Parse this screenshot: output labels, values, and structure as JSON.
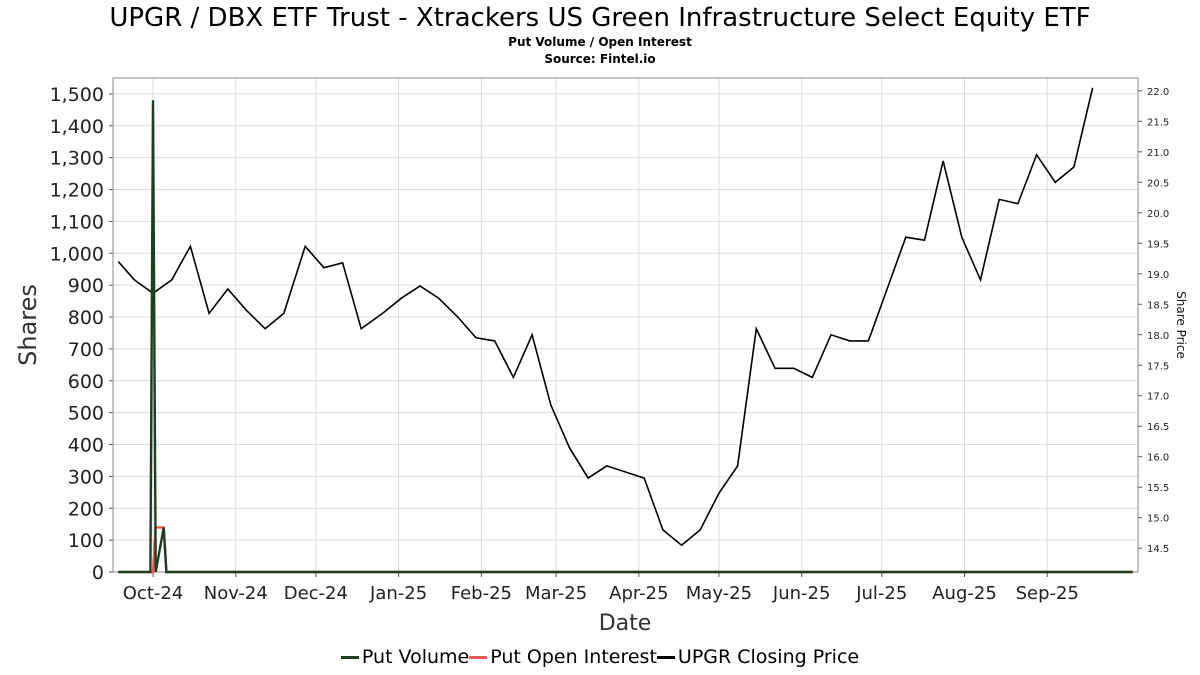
{
  "chart_data": {
    "type": "line",
    "title": "UPGR / DBX ETF Trust - Xtrackers US Green Infrastructure Select Equity ETF",
    "subtitle": "Put Volume / Open Interest",
    "source": "Source: Fintel.io",
    "xlabel": "Date",
    "ylabel": "Shares",
    "y2label": "Share Price",
    "xlim": [
      "2024-09-16",
      "2025-10-05"
    ],
    "ylim": [
      0,
      1550
    ],
    "y2lim": [
      14.11,
      22.21
    ],
    "y_ticks": [
      0,
      100,
      200,
      300,
      400,
      500,
      600,
      700,
      800,
      900,
      1000,
      1100,
      1200,
      1300,
      1400,
      1500
    ],
    "y_tick_labels": [
      "0",
      "100",
      "200",
      "300",
      "400",
      "500",
      "600",
      "700",
      "800",
      "900",
      "1,000",
      "1,100",
      "1,200",
      "1,300",
      "1,400",
      "1,500"
    ],
    "y2_ticks": [
      14.5,
      15.0,
      15.5,
      16.0,
      16.5,
      17.0,
      17.5,
      18.0,
      18.5,
      19.0,
      19.5,
      20.0,
      20.5,
      21.0,
      21.5,
      22.0
    ],
    "y2_tick_labels": [
      "14.5",
      "15.0",
      "15.5",
      "16.0",
      "16.5",
      "17.0",
      "17.5",
      "18.0",
      "18.5",
      "19.0",
      "19.5",
      "20.0",
      "20.5",
      "21.0",
      "21.5",
      "22.0"
    ],
    "x_ticks": [
      {
        "date": "2024-10-01",
        "label": "Oct-24"
      },
      {
        "date": "2024-11-01",
        "label": "Nov-24"
      },
      {
        "date": "2024-12-01",
        "label": "Dec-24"
      },
      {
        "date": "2025-01-01",
        "label": "Jan-25"
      },
      {
        "date": "2025-02-01",
        "label": "Feb-25"
      },
      {
        "date": "2025-03-01",
        "label": "Mar-25"
      },
      {
        "date": "2025-04-01",
        "label": "Apr-25"
      },
      {
        "date": "2025-05-01",
        "label": "May-25"
      },
      {
        "date": "2025-06-01",
        "label": "Jun-25"
      },
      {
        "date": "2025-07-01",
        "label": "Jul-25"
      },
      {
        "date": "2025-08-01",
        "label": "Aug-25"
      },
      {
        "date": "2025-09-01",
        "label": "Sep-25"
      }
    ],
    "grid": true,
    "legend_position": "bottom",
    "series": [
      {
        "name": "Put Volume",
        "axis": "left",
        "color": "#1f3d1f",
        "points": [
          [
            "2024-09-18",
            0
          ],
          [
            "2024-09-27",
            0
          ],
          [
            "2024-09-30",
            0
          ],
          [
            "2024-10-01",
            1480
          ],
          [
            "2024-10-02",
            0
          ],
          [
            "2024-10-05",
            140
          ],
          [
            "2024-10-06",
            0
          ],
          [
            "2025-10-03",
            0
          ]
        ]
      },
      {
        "name": "Put Open Interest",
        "axis": "left",
        "color": "#f25c54",
        "points": [
          [
            "2024-09-18",
            0
          ],
          [
            "2024-10-01",
            0
          ],
          [
            "2024-10-02",
            140
          ],
          [
            "2024-10-05",
            140
          ],
          [
            "2024-10-06",
            0
          ],
          [
            "2025-10-03",
            0
          ]
        ]
      },
      {
        "name": "UPGR Closing Price",
        "axis": "right",
        "color": "#000000",
        "points": [
          [
            "2024-09-18",
            19.2
          ],
          [
            "2024-09-24",
            18.9
          ],
          [
            "2024-10-01",
            18.68
          ],
          [
            "2024-10-08",
            18.9
          ],
          [
            "2024-10-15",
            19.45
          ],
          [
            "2024-10-22",
            18.35
          ],
          [
            "2024-10-29",
            18.75
          ],
          [
            "2024-11-05",
            18.4
          ],
          [
            "2024-11-12",
            18.1
          ],
          [
            "2024-11-19",
            18.35
          ],
          [
            "2024-11-27",
            19.45
          ],
          [
            "2024-12-04",
            19.1
          ],
          [
            "2024-12-11",
            19.18
          ],
          [
            "2024-12-18",
            18.1
          ],
          [
            "2024-12-26",
            18.35
          ],
          [
            "2025-01-02",
            18.6
          ],
          [
            "2025-01-09",
            18.8
          ],
          [
            "2025-01-16",
            18.6
          ],
          [
            "2025-01-23",
            18.3
          ],
          [
            "2025-01-30",
            17.95
          ],
          [
            "2025-02-06",
            17.9
          ],
          [
            "2025-02-13",
            17.3
          ],
          [
            "2025-02-20",
            18.0
          ],
          [
            "2025-02-27",
            16.85
          ],
          [
            "2025-03-06",
            16.15
          ],
          [
            "2025-03-13",
            15.65
          ],
          [
            "2025-03-20",
            15.85
          ],
          [
            "2025-03-27",
            15.75
          ],
          [
            "2025-04-03",
            15.65
          ],
          [
            "2025-04-10",
            14.8
          ],
          [
            "2025-04-17",
            14.55
          ],
          [
            "2025-04-24",
            14.8
          ],
          [
            "2025-05-01",
            15.4
          ],
          [
            "2025-05-08",
            15.85
          ],
          [
            "2025-05-15",
            18.1
          ],
          [
            "2025-05-22",
            17.45
          ],
          [
            "2025-05-29",
            17.45
          ],
          [
            "2025-06-05",
            17.3
          ],
          [
            "2025-06-12",
            18.0
          ],
          [
            "2025-06-19",
            17.9
          ],
          [
            "2025-06-26",
            17.9
          ],
          [
            "2025-07-03",
            18.75
          ],
          [
            "2025-07-10",
            19.6
          ],
          [
            "2025-07-17",
            19.55
          ],
          [
            "2025-07-24",
            20.85
          ],
          [
            "2025-07-31",
            19.6
          ],
          [
            "2025-08-07",
            18.9
          ],
          [
            "2025-08-14",
            20.22
          ],
          [
            "2025-08-21",
            20.15
          ],
          [
            "2025-08-28",
            20.95
          ],
          [
            "2025-09-04",
            20.5
          ],
          [
            "2025-09-11",
            20.75
          ],
          [
            "2025-09-18",
            22.05
          ]
        ]
      }
    ]
  }
}
